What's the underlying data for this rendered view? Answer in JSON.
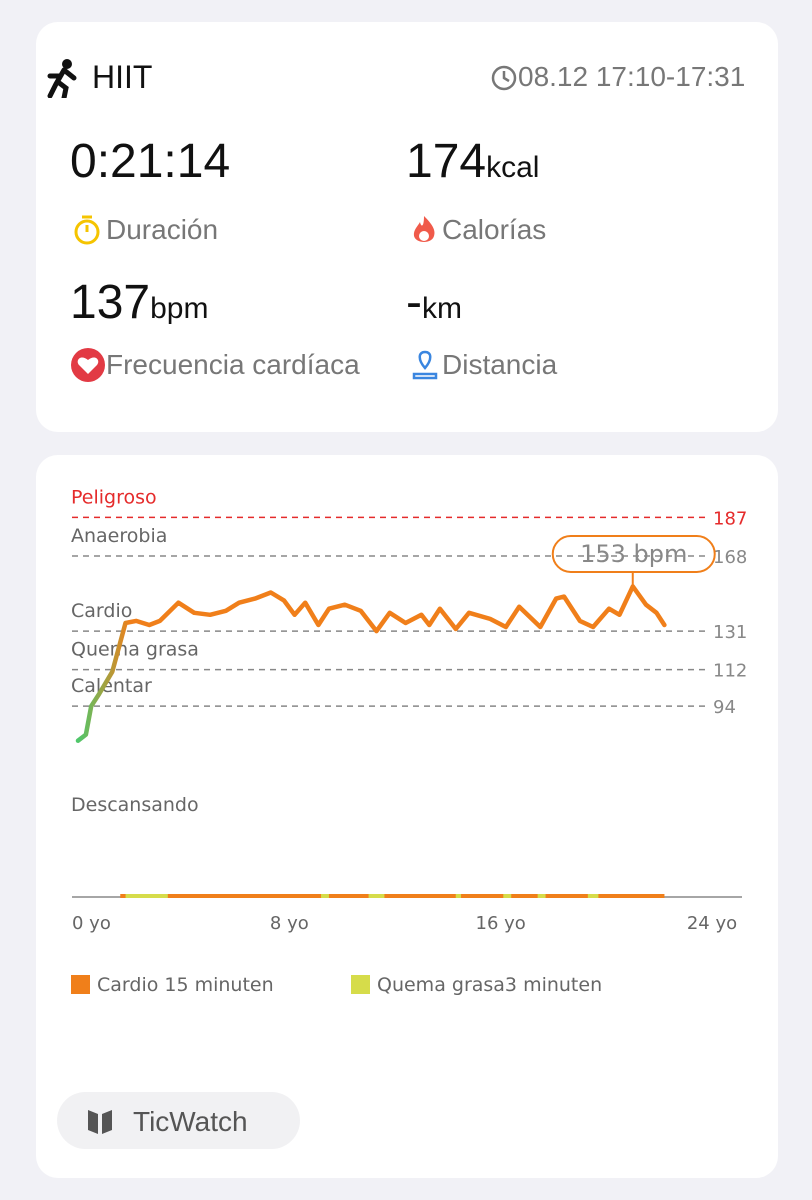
{
  "header": {
    "activity": "HIIT",
    "time": "08.12 17:10-17:31"
  },
  "stats": [
    {
      "value": "0:21:14",
      "label": "Duración"
    },
    {
      "value": "174",
      "unit": "kcal",
      "label": "Calorías"
    },
    {
      "value": "137",
      "unit": "bpm",
      "label": "Frecuencia cardíaca"
    },
    {
      "value": "-",
      "unit": "km",
      "label": "Distancia"
    }
  ],
  "chart_data": {
    "type": "line",
    "zones": [
      {
        "name": "Peligroso",
        "value": 187,
        "color": "#e52b2b"
      },
      {
        "name": "Anaerobia",
        "value": 168,
        "color": "#888888"
      },
      {
        "name": "Cardio",
        "value": 131,
        "color": "#888888"
      },
      {
        "name": "Quema grasa",
        "value": 112,
        "color": "#888888"
      },
      {
        "name": "Calentar",
        "value": 94,
        "color": "#888888"
      },
      {
        "name": "Descansando"
      }
    ],
    "ylim": [
      0,
      200
    ],
    "xlim": [
      0,
      24
    ],
    "xticks": [
      {
        "value": 0,
        "label": "0 yo"
      },
      {
        "value": 8,
        "label": "8 yo"
      },
      {
        "value": 16,
        "label": "16 yo"
      },
      {
        "value": 24,
        "label": "24 yo"
      }
    ],
    "x": [
      0,
      0.3,
      0.5,
      0.8,
      1.3,
      1.8,
      2.2,
      2.7,
      3.1,
      3.8,
      4.4,
      5.0,
      5.6,
      6.1,
      6.7,
      7.3,
      7.8,
      8.2,
      8.6,
      9.1,
      9.5,
      10.1,
      10.7,
      11.3,
      11.8,
      12.4,
      13.0,
      13.3,
      13.7,
      14.3,
      14.8,
      15.6,
      16.2,
      16.7,
      17.5,
      18.1,
      18.4,
      19.0,
      19.5,
      20.1,
      20.5,
      21.0,
      21.5,
      21.9,
      22.2
    ],
    "values": [
      77,
      80,
      94,
      100,
      111,
      135,
      136,
      134,
      136,
      145,
      140,
      139,
      141,
      145,
      147,
      150,
      146,
      139,
      145,
      134,
      142,
      144,
      141,
      131,
      140,
      135,
      139,
      134,
      142,
      132,
      140,
      137,
      133,
      143,
      133,
      147,
      148,
      136,
      133,
      142,
      139,
      153,
      144,
      140,
      134
    ],
    "color": "#f07f1a",
    "start_color": "#4fc76b",
    "annotation": {
      "text": "153 bpm",
      "x": 21.0,
      "y": 153
    },
    "strip": [
      {
        "from": 1.6,
        "to": 22.2,
        "color": "#f07f1a"
      },
      {
        "from": 1.8,
        "to": 3.4,
        "color": "#d6dc4a"
      },
      {
        "from": 9.2,
        "to": 9.5,
        "color": "#d6dc4a"
      },
      {
        "from": 11.0,
        "to": 11.6,
        "color": "#d6dc4a"
      },
      {
        "from": 14.3,
        "to": 14.5,
        "color": "#d6dc4a"
      },
      {
        "from": 16.1,
        "to": 16.4,
        "color": "#d6dc4a"
      },
      {
        "from": 17.4,
        "to": 17.7,
        "color": "#d6dc4a"
      },
      {
        "from": 19.3,
        "to": 19.7,
        "color": "#d6dc4a"
      }
    ],
    "legend": [
      {
        "name": "Cardio 15 minuten",
        "color": "#f07f1a"
      },
      {
        "name": "Quema grasa3 minuten",
        "color": "#d6dc4a"
      }
    ]
  },
  "footer": {
    "brand": "TicWatch"
  }
}
